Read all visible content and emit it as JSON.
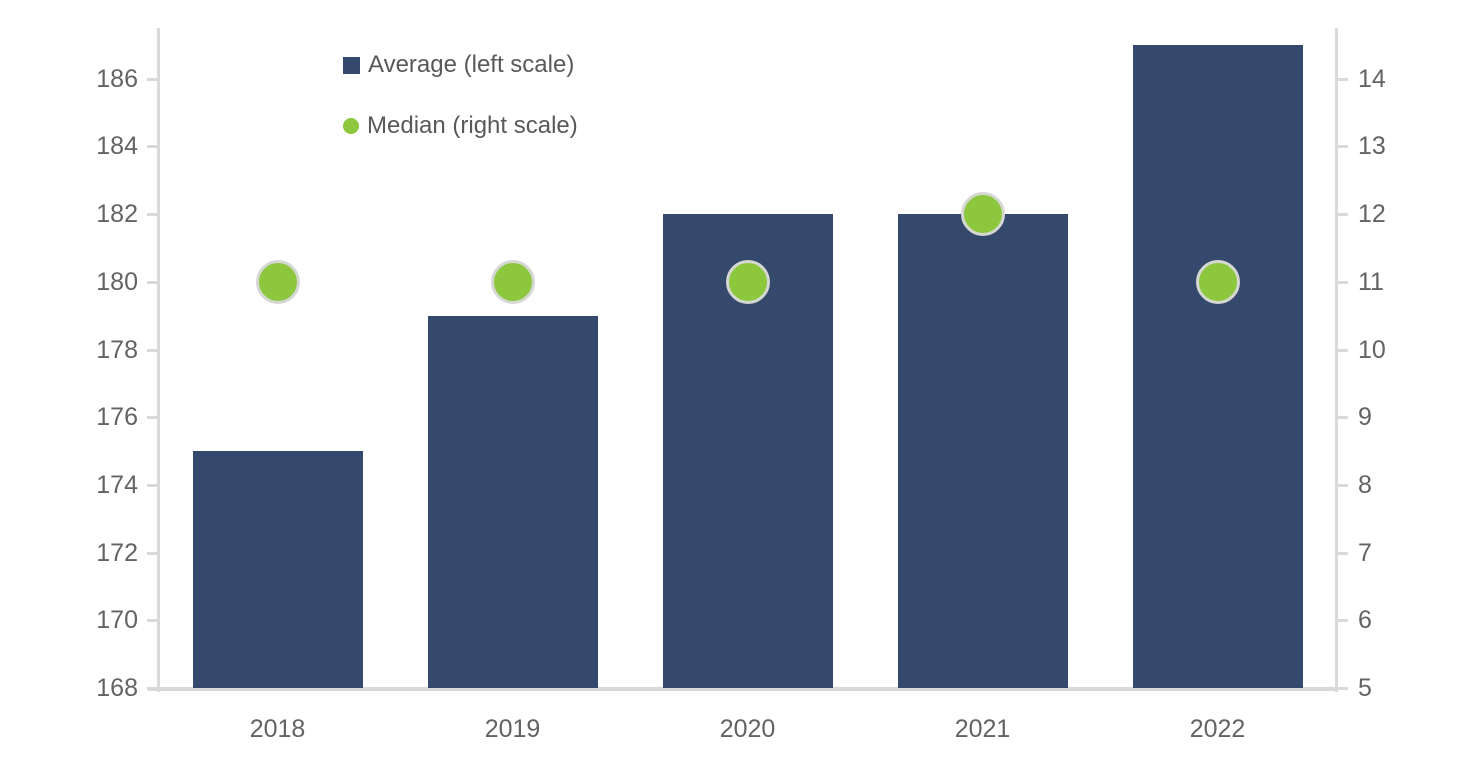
{
  "chart_data": {
    "type": "combo",
    "title": "",
    "categories": [
      "2018",
      "2019",
      "2020",
      "2021",
      "2022"
    ],
    "series": [
      {
        "name": "Average (left scale)",
        "type": "bar",
        "axis": "left",
        "values": [
          175,
          179,
          182,
          182,
          187
        ],
        "color": "#34496B",
        "marker": "square"
      },
      {
        "name": "Median (right scale)",
        "type": "scatter",
        "axis": "right",
        "values": [
          11,
          11,
          11,
          12,
          11
        ],
        "color": "#8DC73E",
        "marker": "circle"
      }
    ],
    "left_axis": {
      "min": 168,
      "max": 187.5,
      "tick_values": [
        168,
        170,
        172,
        174,
        176,
        178,
        180,
        182,
        184,
        186
      ],
      "tick_labels": [
        "168",
        "170",
        "172",
        "174",
        "176",
        "178",
        "180",
        "182",
        "184",
        "186"
      ]
    },
    "right_axis": {
      "min": 5,
      "max": 14.75,
      "tick_values": [
        5,
        6,
        7,
        8,
        9,
        10,
        11,
        12,
        13,
        14
      ],
      "tick_labels": [
        "5",
        "6",
        "7",
        "8",
        "9",
        "10",
        "11",
        "12",
        "13",
        "14"
      ]
    },
    "legend_position": "top-left-inside",
    "grid": false,
    "colors": {
      "bar": "#34496B",
      "dot": "#8DC73E",
      "dot_border": "#D5D8D2",
      "axis": "#D9D9D9",
      "text": "#636363",
      "background": "#FFFFFF"
    }
  }
}
